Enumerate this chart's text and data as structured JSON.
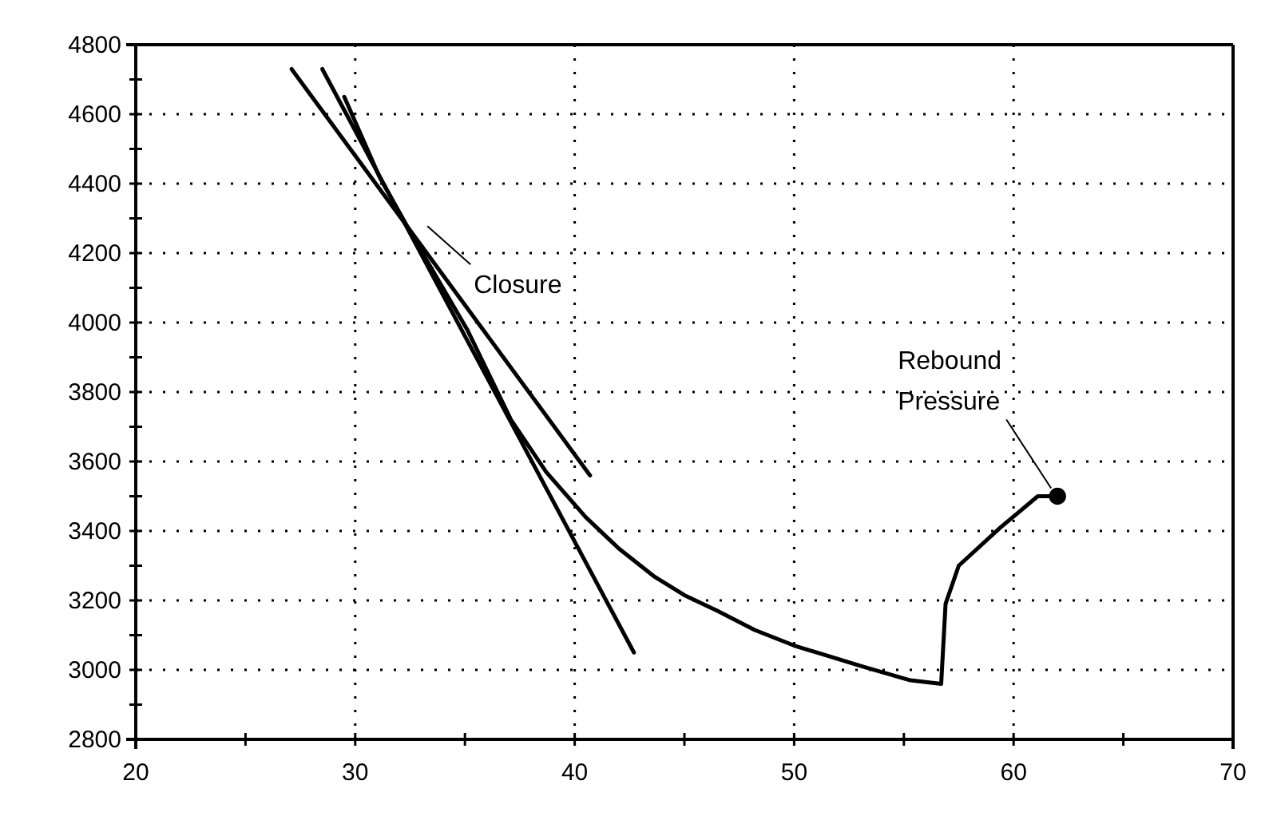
{
  "chart_data": {
    "type": "line",
    "xlim": [
      20,
      70
    ],
    "xticks": [
      20,
      {
        "value": 25,
        "label": null
      },
      30,
      {
        "value": 35,
        "label": null
      },
      40,
      {
        "value": 45,
        "label": null
      },
      50,
      {
        "value": 55,
        "label": null
      },
      60,
      {
        "value": 65,
        "label": null
      },
      70
    ],
    "ylim": [
      2800,
      4800
    ],
    "yticks": [
      2800,
      {
        "value": 2900,
        "label": null
      },
      3000,
      {
        "value": 3100,
        "label": null
      },
      3200,
      {
        "value": 3300,
        "label": null
      },
      3400,
      {
        "value": 3500,
        "label": null
      },
      3600,
      {
        "value": 3700,
        "label": null
      },
      3800,
      {
        "value": 3900,
        "label": null
      },
      4000,
      {
        "value": 4100,
        "label": null
      },
      4200,
      {
        "value": 4300,
        "label": null
      },
      4400,
      {
        "value": 4500,
        "label": null
      },
      4600,
      {
        "value": 4700,
        "label": null
      },
      4800
    ],
    "grid": true,
    "series": [
      {
        "color": "#000000",
        "x": [
          29.5,
          31.1,
          32.7,
          35.1,
          37.1,
          38.7,
          40.5,
          42.0,
          43.6,
          45.0,
          46.5,
          48.2,
          50.0,
          53.1,
          55.3,
          56.7,
          56.9,
          57.5,
          59.4,
          61.1,
          62.0
        ],
        "values": [
          4650,
          4420,
          4240,
          3980,
          3720,
          3570,
          3440,
          3350,
          3270,
          3215,
          3170,
          3115,
          3070,
          3010,
          2970,
          2960,
          3190,
          3300,
          3410,
          3500,
          3500
        ]
      },
      {
        "type": "line",
        "color": "#000000",
        "x": [
          28.5,
          42.7
        ],
        "values": [
          4730,
          3050
        ]
      },
      {
        "type": "line",
        "color": "#000000",
        "x": [
          27.1,
          40.7
        ],
        "values": [
          4730,
          3560
        ]
      },
      {
        "type": "scatter",
        "color": "#000000",
        "marker": "circle",
        "x": [
          62.0
        ],
        "values": [
          3500
        ]
      }
    ],
    "annotations": [
      {
        "text": "Closure",
        "x": 33,
        "y": 4250
      },
      {
        "text": "Rebound Pressure",
        "x": 62.0,
        "y": 3500
      }
    ]
  }
}
